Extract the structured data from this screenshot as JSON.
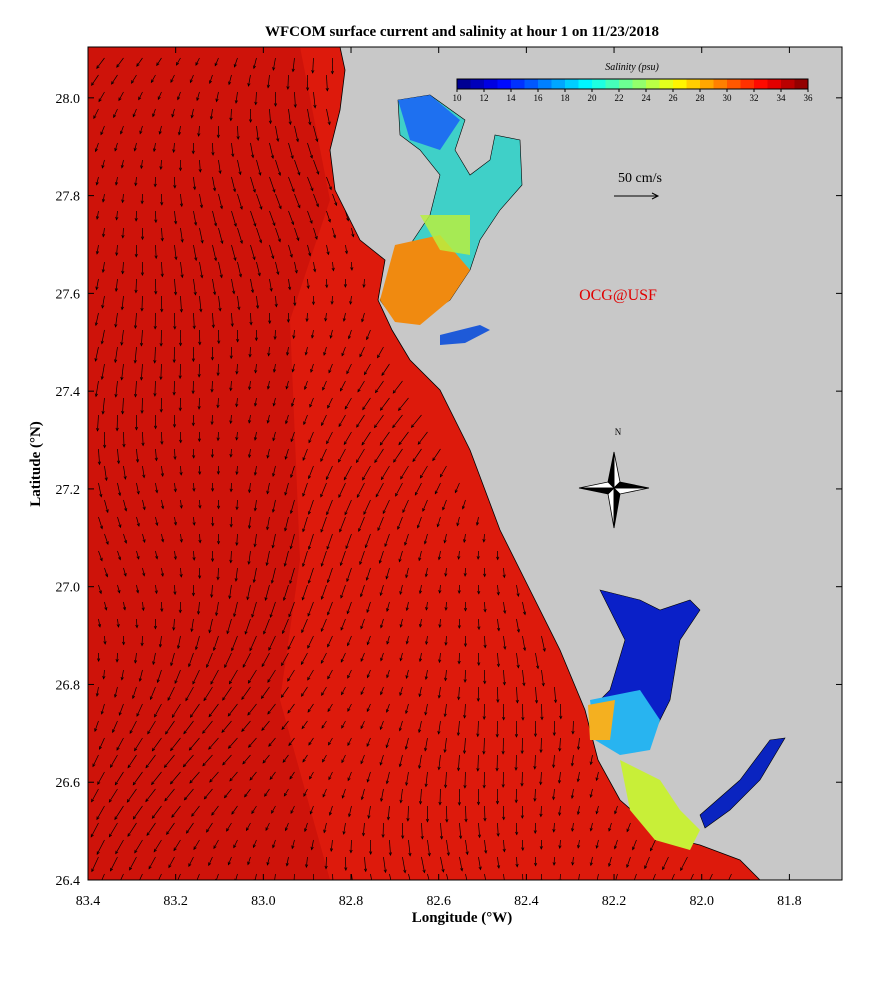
{
  "chart_data": {
    "type": "map",
    "title": "WFCOM surface current and salinity at hour 1 on 11/23/2018",
    "xlabel": "Longitude (°W)",
    "ylabel": "Latitude (°N)",
    "xlim": [
      83.4,
      81.68
    ],
    "ylim": [
      26.4,
      28.104
    ],
    "xticks": [
      83.4,
      83.2,
      {
        "value": 83,
        "label": "83.0"
      },
      82.8,
      82.6,
      82.4,
      82.2,
      {
        "value": 82,
        "label": "82.0"
      },
      81.8
    ],
    "yticks": [
      26.4,
      26.6,
      26.8,
      {
        "value": 27,
        "label": "27.0"
      },
      27.2,
      27.4,
      27.6,
      27.8,
      {
        "value": 28,
        "label": "28.0"
      }
    ],
    "colorbar": {
      "title": "Salinity (psu)",
      "colormap": "jet",
      "lim": [
        10,
        36
      ],
      "ticks": [
        10,
        12,
        14,
        16,
        18,
        20,
        22,
        24,
        26,
        28,
        30,
        32,
        34,
        36
      ]
    },
    "annotations": {
      "scale": "50 cm/s",
      "credit": "OCG@USF",
      "north": "N"
    }
  }
}
